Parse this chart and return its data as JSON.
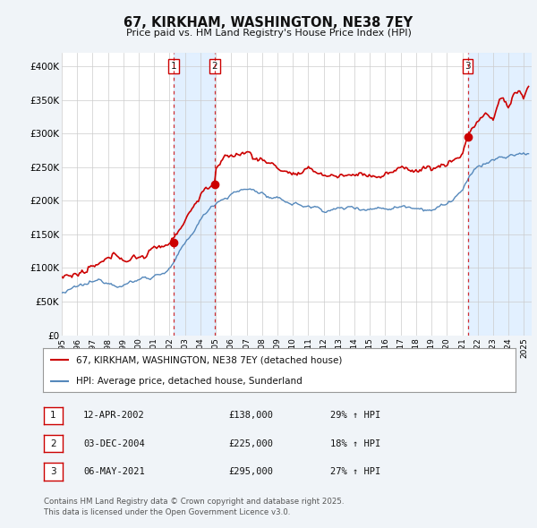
{
  "title": "67, KIRKHAM, WASHINGTON, NE38 7EY",
  "subtitle": "Price paid vs. HM Land Registry's House Price Index (HPI)",
  "ylabel_ticks": [
    "£0",
    "£50K",
    "£100K",
    "£150K",
    "£200K",
    "£250K",
    "£300K",
    "£350K",
    "£400K"
  ],
  "ylim": [
    0,
    420000
  ],
  "xlim_start": 1995.0,
  "xlim_end": 2025.5,
  "sale_color": "#cc0000",
  "hpi_color": "#5588bb",
  "hpi_fill_color": "#ddeeff",
  "sale_label": "67, KIRKHAM, WASHINGTON, NE38 7EY (detached house)",
  "hpi_label": "HPI: Average price, detached house, Sunderland",
  "transactions": [
    {
      "num": 1,
      "date": "12-APR-2002",
      "price": 138000,
      "pct": "29%",
      "x": 2002.28
    },
    {
      "num": 2,
      "date": "03-DEC-2004",
      "price": 225000,
      "pct": "18%",
      "x": 2004.92
    },
    {
      "num": 3,
      "date": "06-MAY-2021",
      "price": 295000,
      "pct": "27%",
      "x": 2021.35
    }
  ],
  "footer": "Contains HM Land Registry data © Crown copyright and database right 2025.\nThis data is licensed under the Open Government Licence v3.0.",
  "background_color": "#f0f4f8",
  "plot_bg_color": "#ffffff"
}
